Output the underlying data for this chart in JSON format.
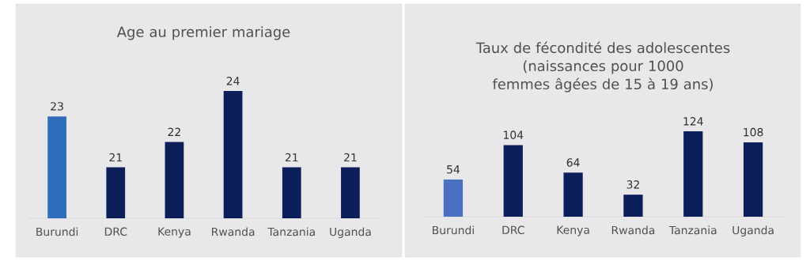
{
  "chart_data": [
    {
      "type": "bar",
      "title": "Age au premier mariage",
      "categories": [
        "Burundi",
        "DRC",
        "Kenya",
        "Rwanda",
        "Tanzania",
        "Uganda"
      ],
      "values": [
        23,
        21,
        22,
        24,
        21,
        21
      ],
      "colors": [
        "#2f6dbb",
        "#0c1f5b",
        "#0c1f5b",
        "#0c1f5b",
        "#0c1f5b",
        "#0c1f5b"
      ],
      "ylim": [
        19,
        24
      ],
      "data_labels": true,
      "tick_labels": "x"
    },
    {
      "type": "bar",
      "title": "Taux de fécondité des adolescentes (naissances pour 1000 femmes âgées de 15 à 19 ans)",
      "categories": [
        "Burundi",
        "DRC",
        "Kenya",
        "Rwanda",
        "Tanzania",
        "Uganda"
      ],
      "values": [
        54,
        104,
        64,
        32,
        124,
        108
      ],
      "colors": [
        "#4a70c3",
        "#0c1f5b",
        "#0c1f5b",
        "#0c1f5b",
        "#0c1f5b",
        "#0c1f5b"
      ],
      "ylim": [
        0,
        124
      ],
      "data_labels": true,
      "tick_labels": "x"
    }
  ]
}
